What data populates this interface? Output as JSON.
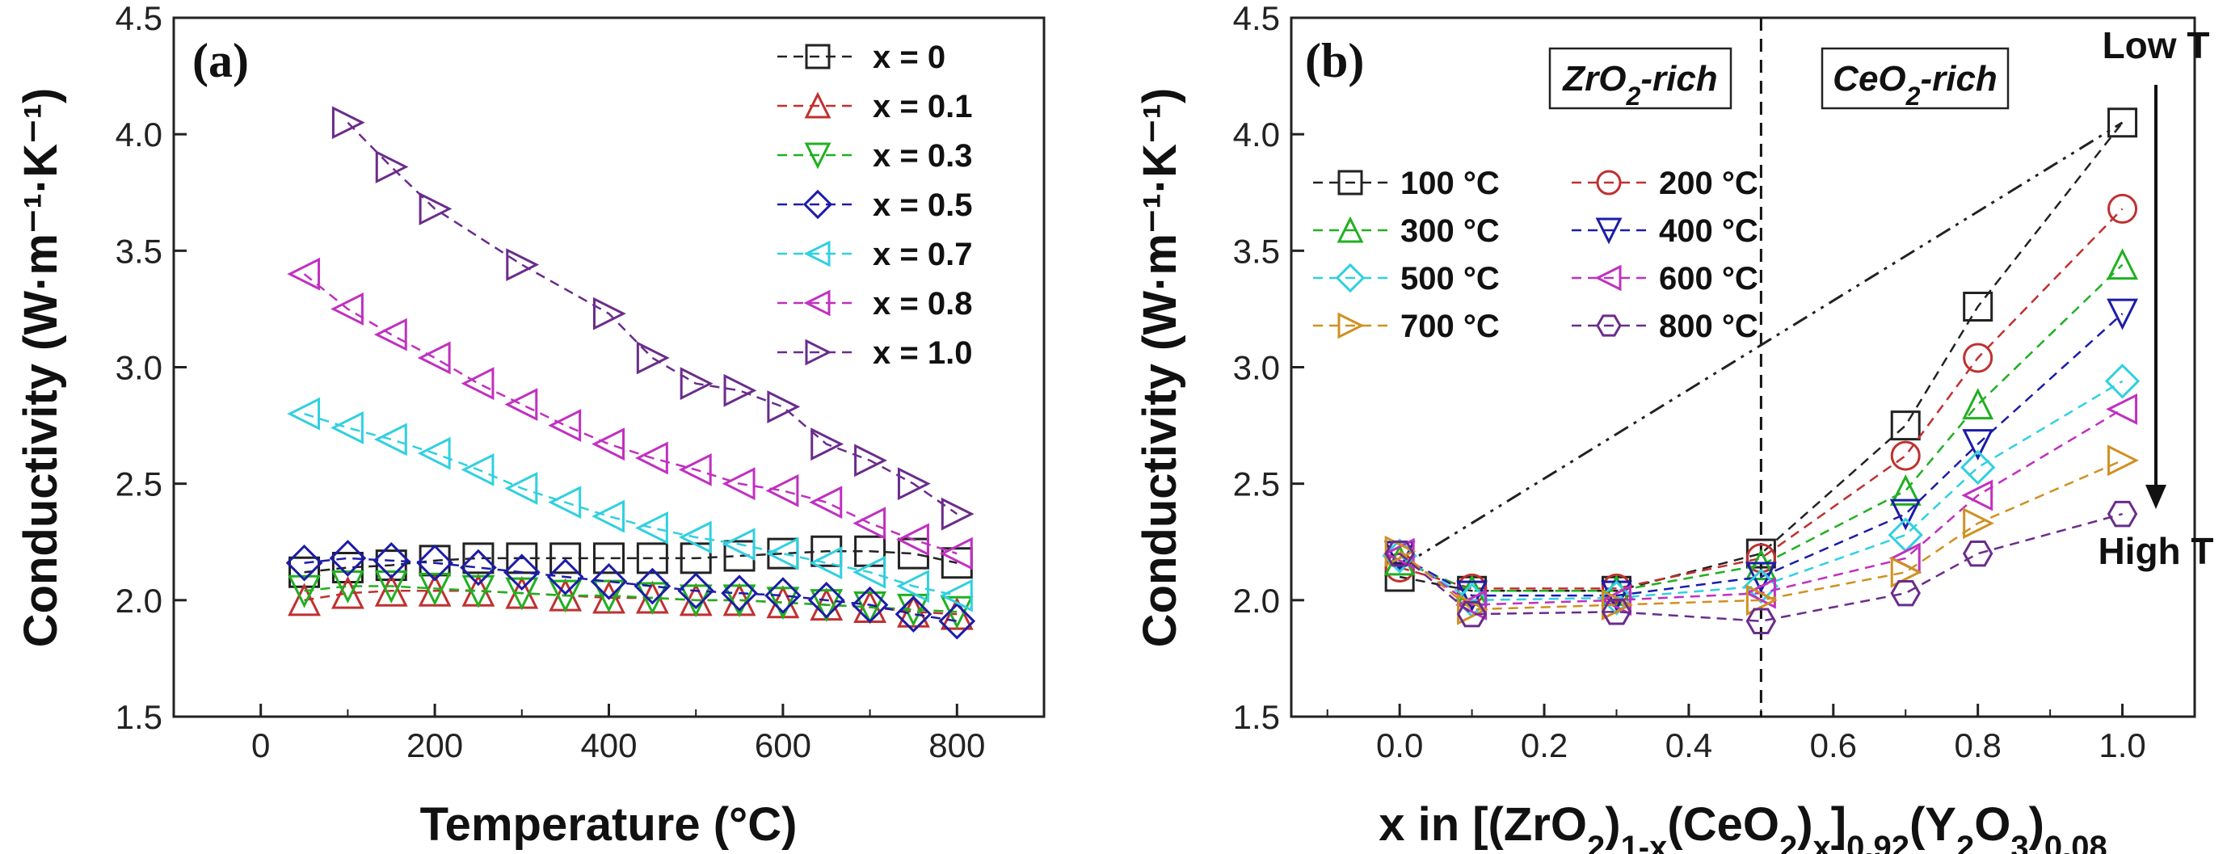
{
  "chart_data": [
    {
      "type": "line",
      "panel_label": "(a)",
      "xlabel": "Temperature (°C)",
      "ylabel": "Conductivity (W·m⁻¹·K⁻¹)",
      "xlim": [
        -100,
        900
      ],
      "ylim": [
        1.5,
        4.5
      ],
      "xticks": [
        "0",
        "200",
        "400",
        "600",
        "800"
      ],
      "yticks": [
        "1.5",
        "2.0",
        "2.5",
        "3.0",
        "3.5",
        "4.0",
        "4.5"
      ],
      "legend_position": "top-right",
      "series": [
        {
          "name": "x = 0",
          "color": "#222222",
          "marker": "square",
          "x": [
            50,
            100,
            150,
            200,
            250,
            300,
            350,
            400,
            450,
            500,
            550,
            600,
            650,
            700,
            750,
            800
          ],
          "y": [
            2.12,
            2.14,
            2.15,
            2.17,
            2.18,
            2.18,
            2.18,
            2.18,
            2.18,
            2.18,
            2.19,
            2.2,
            2.21,
            2.21,
            2.2,
            2.16
          ]
        },
        {
          "name": "x = 0.1",
          "color": "#c03030",
          "marker": "triangle-up",
          "x": [
            50,
            100,
            150,
            200,
            250,
            300,
            350,
            400,
            450,
            500,
            550,
            600,
            650,
            700,
            750,
            800
          ],
          "y": [
            2.0,
            2.03,
            2.04,
            2.04,
            2.04,
            2.03,
            2.02,
            2.01,
            2.01,
            2.0,
            2.0,
            1.99,
            1.98,
            1.97,
            1.95,
            1.94
          ]
        },
        {
          "name": "x = 0.3",
          "color": "#20b020",
          "marker": "triangle-down",
          "x": [
            50,
            100,
            150,
            200,
            250,
            300,
            350,
            400,
            450,
            500,
            550,
            600,
            650,
            700,
            750,
            800
          ],
          "y": [
            2.04,
            2.06,
            2.06,
            2.05,
            2.04,
            2.03,
            2.02,
            2.02,
            2.01,
            2.0,
            2.0,
            1.99,
            1.98,
            1.97,
            1.96,
            1.95
          ]
        },
        {
          "name": "x = 0.5",
          "color": "#1c1ca8",
          "marker": "diamond",
          "x": [
            50,
            100,
            150,
            200,
            250,
            300,
            350,
            400,
            450,
            500,
            550,
            600,
            650,
            700,
            750,
            800
          ],
          "y": [
            2.16,
            2.18,
            2.17,
            2.16,
            2.14,
            2.12,
            2.1,
            2.08,
            2.06,
            2.04,
            2.03,
            2.02,
            2.0,
            1.98,
            1.94,
            1.91
          ]
        },
        {
          "name": "x = 0.7",
          "color": "#30d0e0",
          "marker": "triangle-left",
          "x": [
            50,
            100,
            150,
            200,
            250,
            300,
            350,
            400,
            450,
            500,
            550,
            600,
            650,
            700,
            750,
            800
          ],
          "y": [
            2.8,
            2.74,
            2.69,
            2.63,
            2.56,
            2.48,
            2.42,
            2.36,
            2.31,
            2.27,
            2.24,
            2.2,
            2.16,
            2.12,
            2.06,
            2.02
          ]
        },
        {
          "name": "x = 0.8",
          "color": "#c030c0",
          "marker": "triangle-left",
          "x": [
            50,
            100,
            150,
            200,
            250,
            300,
            350,
            400,
            450,
            500,
            550,
            600,
            650,
            700,
            750,
            800
          ],
          "y": [
            3.4,
            3.25,
            3.14,
            3.04,
            2.93,
            2.84,
            2.75,
            2.67,
            2.61,
            2.56,
            2.5,
            2.47,
            2.42,
            2.33,
            2.26,
            2.2
          ]
        },
        {
          "name": "x = 1.0",
          "color": "#6a2c8c",
          "marker": "triangle-right",
          "x": [
            100,
            150,
            200,
            300,
            400,
            450,
            500,
            550,
            600,
            650,
            700,
            750,
            800
          ],
          "y": [
            4.05,
            3.86,
            3.68,
            3.44,
            3.23,
            3.04,
            2.93,
            2.9,
            2.83,
            2.67,
            2.6,
            2.5,
            2.37
          ]
        }
      ]
    },
    {
      "type": "line",
      "panel_label": "(b)",
      "xlabel": "x in [(ZrO2)1-x(CeO2)x]0.92(Y2O3)0.08",
      "ylabel": "Conductivity (W·m⁻¹·K⁻¹)",
      "xlim": [
        -0.15,
        1.1
      ],
      "ylim": [
        1.5,
        4.5
      ],
      "xticks": [
        "0.0",
        "0.2",
        "0.4",
        "0.6",
        "0.8",
        "1.0"
      ],
      "yticks": [
        "1.5",
        "2.0",
        "2.5",
        "3.0",
        "3.5",
        "4.0",
        "4.5"
      ],
      "legend_position": "top-left",
      "x": [
        0.0,
        0.1,
        0.3,
        0.5,
        0.7,
        0.8,
        1.0
      ],
      "divider_x": 0.5,
      "region_labels": {
        "left": "ZrO2-rich",
        "right": "CeO2-rich"
      },
      "arrow_labels": {
        "top": "Low T",
        "bottom": "High T"
      },
      "series": [
        {
          "name": "100 °C",
          "color": "#222222",
          "marker": "square",
          "y": [
            2.1,
            2.04,
            2.04,
            2.2,
            2.75,
            3.26,
            4.05
          ]
        },
        {
          "name": "200 °C",
          "color": "#c03030",
          "marker": "circle",
          "y": [
            2.14,
            2.05,
            2.05,
            2.18,
            2.62,
            3.04,
            3.68
          ]
        },
        {
          "name": "300 °C",
          "color": "#20b020",
          "marker": "triangle-up",
          "y": [
            2.17,
            2.04,
            2.04,
            2.15,
            2.47,
            2.84,
            3.44
          ]
        },
        {
          "name": "400 °C",
          "color": "#1c1ca8",
          "marker": "triangle-down",
          "y": [
            2.19,
            2.02,
            2.02,
            2.1,
            2.37,
            2.67,
            3.23
          ]
        },
        {
          "name": "500 °C",
          "color": "#30d0e0",
          "marker": "diamond",
          "y": [
            2.19,
            2.0,
            2.01,
            2.06,
            2.28,
            2.57,
            2.94
          ]
        },
        {
          "name": "600 °C",
          "color": "#c030c0",
          "marker": "triangle-left",
          "y": [
            2.2,
            1.98,
            2.0,
            2.03,
            2.18,
            2.45,
            2.82
          ]
        },
        {
          "name": "700 °C",
          "color": "#d09020",
          "marker": "triangle-right",
          "y": [
            2.21,
            1.96,
            1.98,
            2.0,
            2.12,
            2.33,
            2.6
          ]
        },
        {
          "name": "800 °C",
          "color": "#6a2c8c",
          "marker": "hexagon",
          "y": [
            2.2,
            1.94,
            1.95,
            1.91,
            2.03,
            2.2,
            2.37
          ]
        }
      ],
      "trend_line": {
        "x": [
          0.0,
          1.0
        ],
        "y": [
          2.14,
          4.05
        ]
      }
    }
  ]
}
